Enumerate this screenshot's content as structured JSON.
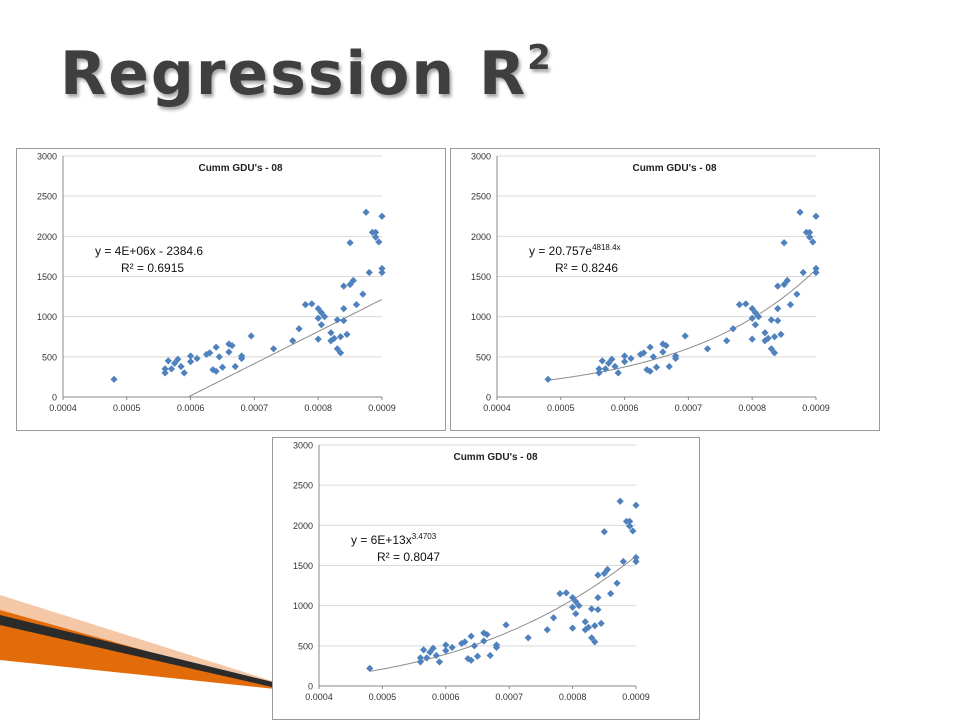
{
  "slide": {
    "title_main": "Regression R",
    "title_sup": "2"
  },
  "colors": {
    "marker": "#4f81bd",
    "trendline": "#8c8c8c",
    "gridline": "#d9d9d9",
    "ornament_dark": "#2b2b2b",
    "ornament_orange": "#e36c0a",
    "ornament_light": "#f4c7a6"
  },
  "shared_points": [
    [
      0.00048,
      220
    ],
    [
      0.00056,
      350
    ],
    [
      0.00056,
      300
    ],
    [
      0.000565,
      450
    ],
    [
      0.00057,
      350
    ],
    [
      0.000575,
      420
    ],
    [
      0.00058,
      470
    ],
    [
      0.000585,
      380
    ],
    [
      0.00059,
      300
    ],
    [
      0.0006,
      440
    ],
    [
      0.0006,
      510
    ],
    [
      0.00061,
      480
    ],
    [
      0.000625,
      530
    ],
    [
      0.00063,
      550
    ],
    [
      0.000635,
      340
    ],
    [
      0.00064,
      320
    ],
    [
      0.00064,
      620
    ],
    [
      0.000645,
      500
    ],
    [
      0.00065,
      370
    ],
    [
      0.00066,
      560
    ],
    [
      0.00066,
      660
    ],
    [
      0.000665,
      640
    ],
    [
      0.00067,
      380
    ],
    [
      0.00068,
      510
    ],
    [
      0.00068,
      480
    ],
    [
      0.000695,
      760
    ],
    [
      0.00073,
      600
    ],
    [
      0.00076,
      700
    ],
    [
      0.00077,
      850
    ],
    [
      0.00078,
      1150
    ],
    [
      0.00079,
      1160
    ],
    [
      0.0008,
      720
    ],
    [
      0.0008,
      980
    ],
    [
      0.0008,
      1100
    ],
    [
      0.000805,
      900
    ],
    [
      0.000805,
      1050
    ],
    [
      0.00081,
      1000
    ],
    [
      0.00082,
      800
    ],
    [
      0.00082,
      700
    ],
    [
      0.000825,
      730
    ],
    [
      0.00083,
      600
    ],
    [
      0.00083,
      960
    ],
    [
      0.000835,
      750
    ],
    [
      0.000835,
      550
    ],
    [
      0.00084,
      950
    ],
    [
      0.00084,
      1100
    ],
    [
      0.000845,
      780
    ],
    [
      0.00085,
      1920
    ],
    [
      0.00085,
      1400
    ],
    [
      0.000855,
      1450
    ],
    [
      0.00086,
      1150
    ],
    [
      0.00087,
      1280
    ],
    [
      0.000875,
      2300
    ],
    [
      0.00088,
      1550
    ],
    [
      0.000885,
      2050
    ],
    [
      0.00089,
      1990
    ],
    [
      0.00089,
      2050
    ],
    [
      0.000895,
      1930
    ],
    [
      0.0009,
      2250
    ],
    [
      0.0009,
      1600
    ],
    [
      0.0009,
      1550
    ],
    [
      0.00084,
      1380
    ]
  ],
  "chart_data": [
    {
      "type": "scatter",
      "title": "Cumm GDU's - 08",
      "xlabel": "",
      "ylabel": "",
      "xlim": [
        0.0004,
        0.0009
      ],
      "ylim": [
        0,
        3000
      ],
      "x_ticks": [
        "0.0004",
        "0.0005",
        "0.0006",
        "0.0007",
        "0.0008",
        "0.0009"
      ],
      "y_ticks": [
        "0",
        "500",
        "1000",
        "1500",
        "2000",
        "2500",
        "3000"
      ],
      "grid": "horizontal",
      "trendline": {
        "kind": "linear",
        "a": 4000000,
        "b": -2384.6
      },
      "equation": {
        "line1_base": "y = 4E+06x - 2384.6",
        "line1_sup": "",
        "line2": "R² = 0.6915"
      }
    },
    {
      "type": "scatter",
      "title": "Cumm GDU's - 08",
      "xlabel": "",
      "ylabel": "",
      "xlim": [
        0.0004,
        0.0009
      ],
      "ylim": [
        0,
        3000
      ],
      "x_ticks": [
        "0.0004",
        "0.0005",
        "0.0006",
        "0.0007",
        "0.0008",
        "0.0009"
      ],
      "y_ticks": [
        "0",
        "500",
        "1000",
        "1500",
        "2000",
        "2500",
        "3000"
      ],
      "grid": "horizontal",
      "trendline": {
        "kind": "exponential",
        "a": 20.757,
        "b": 4818.4
      },
      "equation": {
        "line1_base": "y = 20.757e",
        "line1_sup": "4818.4x",
        "line2": "R² = 0.8246"
      }
    },
    {
      "type": "scatter",
      "title": "Cumm GDU's - 08",
      "xlabel": "",
      "ylabel": "",
      "xlim": [
        0.0004,
        0.0009
      ],
      "ylim": [
        0,
        3000
      ],
      "x_ticks": [
        "0.0004",
        "0.0005",
        "0.0006",
        "0.0007",
        "0.0008",
        "0.0009"
      ],
      "y_ticks": [
        "0",
        "500",
        "1000",
        "1500",
        "2000",
        "2500",
        "3000"
      ],
      "grid": "horizontal",
      "trendline": {
        "kind": "power",
        "a": 60000000000000.0,
        "b": 3.4703
      },
      "equation": {
        "line1_base": "y = 6E+13x",
        "line1_sup": "3.4703",
        "line2": "R² = 0.8047"
      }
    }
  ]
}
